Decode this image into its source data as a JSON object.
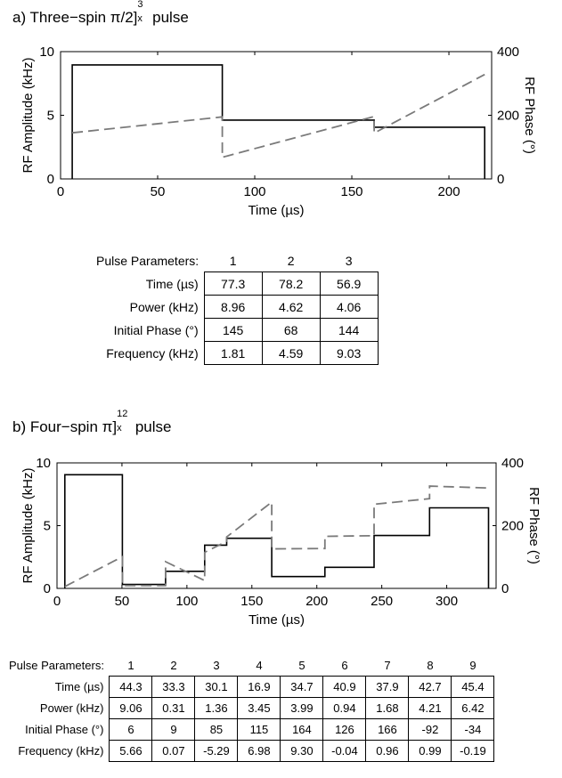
{
  "panel_a": {
    "title_prefix": "a) Three−spin π/2]",
    "title_sup": "3",
    "title_sub": "x",
    "title_suffix": " pulse",
    "table_header": "Pulse Parameters:",
    "columns": [
      "1",
      "2",
      "3"
    ],
    "rows": [
      {
        "label": "Time (µs)",
        "values": [
          "77.3",
          "78.2",
          "56.9"
        ]
      },
      {
        "label": "Power (kHz)",
        "values": [
          "8.96",
          "4.62",
          "4.06"
        ]
      },
      {
        "label": "Initial Phase (°)",
        "values": [
          "145",
          "68",
          "144"
        ]
      },
      {
        "label": "Frequency (kHz)",
        "values": [
          "1.81",
          "4.59",
          "9.03"
        ]
      }
    ]
  },
  "panel_b": {
    "title_prefix": "b) Four−spin π]",
    "title_sup": "12",
    "title_sub": "x",
    "title_suffix": " pulse",
    "table_header": "Pulse Parameters:",
    "columns": [
      "1",
      "2",
      "3",
      "4",
      "5",
      "6",
      "7",
      "8",
      "9"
    ],
    "rows": [
      {
        "label": "Time (µs)",
        "values": [
          "44.3",
          "33.3",
          "30.1",
          "16.9",
          "34.7",
          "40.9",
          "37.9",
          "42.7",
          "45.4"
        ]
      },
      {
        "label": "Power (kHz)",
        "values": [
          "9.06",
          "0.31",
          "1.36",
          "3.45",
          "3.99",
          "0.94",
          "1.68",
          "4.21",
          "6.42"
        ]
      },
      {
        "label": "Initial Phase (°)",
        "values": [
          "6",
          "9",
          "85",
          "115",
          "164",
          "126",
          "166",
          "-92",
          "-34"
        ]
      },
      {
        "label": "Frequency (kHz)",
        "values": [
          "5.66",
          "0.07",
          "-5.29",
          "6.98",
          "9.30",
          "-0.04",
          "0.96",
          "0.99",
          "-0.19"
        ]
      }
    ]
  },
  "chart_data": [
    {
      "type": "line",
      "xlabel": "Time (µs)",
      "ylabel": "RF Amplitude (kHz)",
      "y2label": "RF Phase (°)",
      "xlim": [
        0,
        222
      ],
      "ylim": [
        0,
        10
      ],
      "y2lim": [
        0,
        400
      ],
      "xticks": [
        "0",
        "50",
        "100",
        "150",
        "200"
      ],
      "yticks": [
        "0",
        "5",
        "10"
      ],
      "y2ticks": [
        "0",
        "200",
        "400"
      ],
      "start_time": 6,
      "grid": false,
      "series": [
        {
          "axis": "left",
          "style": "solid",
          "color": "#000000",
          "x": [
            6,
            6,
            83.3,
            83.3,
            161.5,
            161.5,
            218.4,
            218.4
          ],
          "y": [
            0,
            8.96,
            8.96,
            4.62,
            4.62,
            4.06,
            4.06,
            0
          ]
        },
        {
          "axis": "right",
          "style": "dashed",
          "color": "#7a7a7a",
          "x": [
            6,
            83.3,
            83.3,
            161.5,
            161.5,
            218.4
          ],
          "y": [
            145,
            195,
            68,
            196,
            144,
            328
          ]
        }
      ]
    },
    {
      "type": "line",
      "xlabel": "Time (µs)",
      "ylabel": "RF Amplitude (kHz)",
      "y2label": "RF Phase (°)",
      "xlim": [
        0,
        338
      ],
      "ylim": [
        0,
        10
      ],
      "y2lim": [
        0,
        400
      ],
      "xticks": [
        "0",
        "50",
        "100",
        "150",
        "200",
        "250",
        "300"
      ],
      "yticks": [
        "0",
        "5",
        "10"
      ],
      "y2ticks": [
        "0",
        "200",
        "400"
      ],
      "start_time": 6,
      "grid": false,
      "series": [
        {
          "axis": "left",
          "style": "solid",
          "color": "#000000",
          "x": [
            6,
            6,
            50.3,
            50.3,
            83.6,
            83.6,
            113.7,
            113.7,
            130.6,
            130.6,
            165.3,
            165.3,
            206.2,
            206.2,
            244.1,
            244.1,
            286.8,
            286.8,
            332.2,
            332.2
          ],
          "y": [
            0,
            9.06,
            9.06,
            0.31,
            0.31,
            1.36,
            1.36,
            3.45,
            3.45,
            3.99,
            3.99,
            0.94,
            0.94,
            1.68,
            1.68,
            4.21,
            4.21,
            6.42,
            6.42,
            0
          ]
        },
        {
          "axis": "right",
          "style": "dashed",
          "color": "#7a7a7a",
          "x": [
            6,
            50.3,
            50.3,
            83.6,
            83.6,
            113.7,
            113.7,
            130.6,
            130.6,
            165.3,
            165.3,
            206.2,
            206.2,
            244.1,
            244.1,
            286.8,
            286.8,
            332.2
          ],
          "y": [
            6,
            101,
            9,
            9,
            85,
            25,
            115,
            150,
            164,
            275,
            126,
            127,
            166,
            168,
            268,
            286,
            326,
            320
          ]
        }
      ]
    }
  ]
}
